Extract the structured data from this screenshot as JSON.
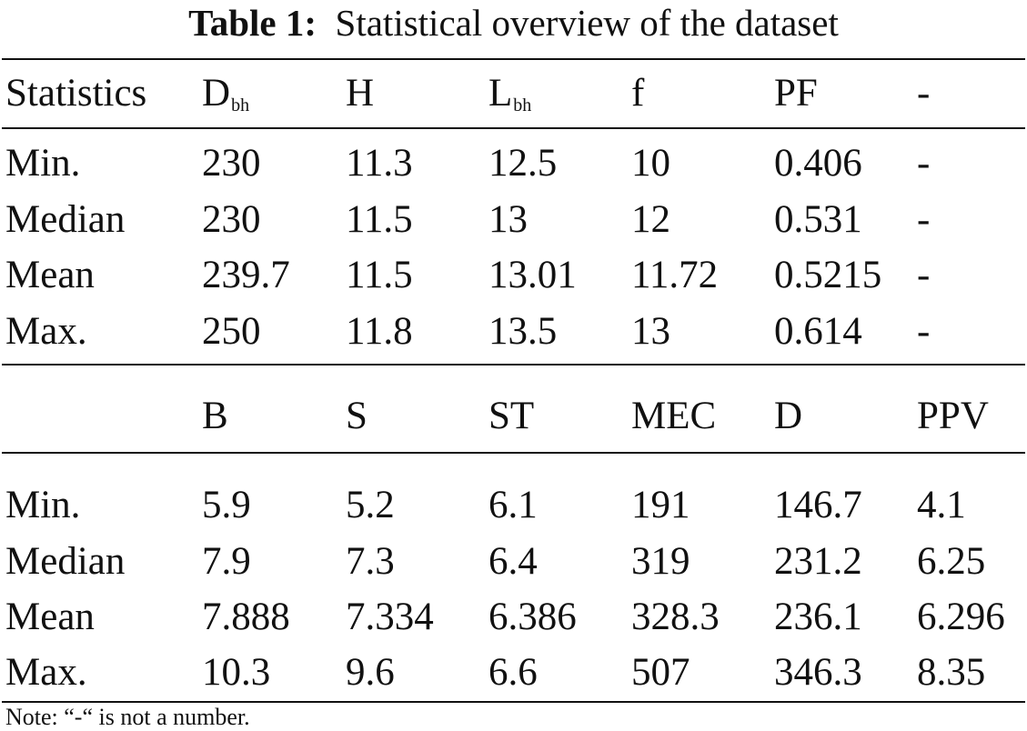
{
  "caption": {
    "label": "Table 1:",
    "text": "Statistical overview of the dataset"
  },
  "table1": {
    "headers": [
      {
        "main": "Statistics",
        "sub": ""
      },
      {
        "main": "D",
        "sub": "bh"
      },
      {
        "main": "H",
        "sub": ""
      },
      {
        "main": "L",
        "sub": "bh"
      },
      {
        "main": "f",
        "sub": ""
      },
      {
        "main": "PF",
        "sub": ""
      },
      {
        "main": "-",
        "sub": ""
      }
    ],
    "rows": [
      [
        "Min.",
        "230",
        "11.3",
        "12.5",
        "10",
        "0.406",
        "-"
      ],
      [
        "Median",
        "230",
        "11.5",
        "13",
        "12",
        "0.531",
        "-"
      ],
      [
        "Mean",
        "239.7",
        "11.5",
        "13.01",
        "11.72",
        "0.5215",
        "-"
      ],
      [
        "Max.",
        "250",
        "11.8",
        "13.5",
        "13",
        "0.614",
        "-"
      ]
    ]
  },
  "table2": {
    "headers": [
      "",
      "B",
      "S",
      "ST",
      "MEC",
      "D",
      "PPV"
    ],
    "rows": [
      [
        "Min.",
        "5.9",
        "5.2",
        "6.1",
        "191",
        "146.7",
        "4.1"
      ],
      [
        "Median",
        "7.9",
        "7.3",
        "6.4",
        "319",
        "231.2",
        "6.25"
      ],
      [
        "Mean",
        "7.888",
        "7.334",
        "6.386",
        "328.3",
        "236.1",
        "6.296"
      ],
      [
        "Max.",
        "10.3",
        "9.6",
        "6.6",
        "507",
        "346.3",
        "8.35"
      ]
    ]
  },
  "note": "Note: “-“ is not a number."
}
